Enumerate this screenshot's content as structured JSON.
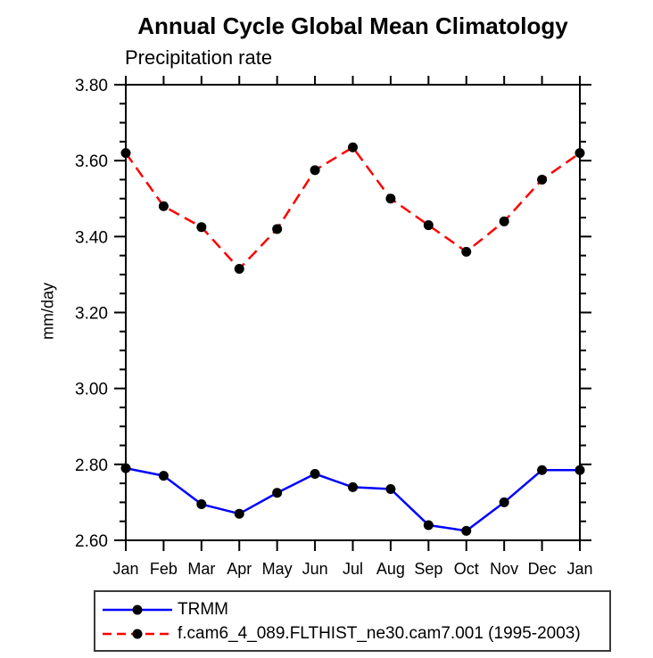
{
  "chart_data": {
    "type": "line",
    "title": "Annual Cycle Global Mean Climatology",
    "subtitle": "Precipitation rate",
    "ylabel": "mm/day",
    "categories": [
      "Jan",
      "Feb",
      "Mar",
      "Apr",
      "May",
      "Jun",
      "Jul",
      "Aug",
      "Sep",
      "Oct",
      "Nov",
      "Dec",
      "Jan"
    ],
    "ylim": [
      2.6,
      3.8
    ],
    "ytick_labels": [
      "2.60",
      "2.80",
      "3.00",
      "3.20",
      "3.40",
      "3.60",
      "3.80"
    ],
    "ytick_major_interval": 0.2,
    "ytick_minor_interval": 0.05,
    "grid": false,
    "frame": true,
    "legend_position": "bottom-left",
    "series": [
      {
        "name": "TRMM",
        "color": "#0000ff",
        "line_style": "solid",
        "marker": "filled-circle",
        "marker_color": "#000000",
        "values": [
          2.79,
          2.77,
          2.695,
          2.67,
          2.725,
          2.775,
          2.74,
          2.735,
          2.64,
          2.625,
          2.7,
          2.785,
          2.785
        ]
      },
      {
        "name": "f.cam6_4_089.FLTHIST_ne30.cam7.001 (1995-2003)",
        "color": "#ff0000",
        "line_style": "dashed",
        "marker": "filled-circle",
        "marker_color": "#000000",
        "values": [
          3.62,
          3.48,
          3.425,
          3.315,
          3.42,
          3.575,
          3.635,
          3.5,
          3.43,
          3.36,
          3.44,
          3.55,
          3.62
        ]
      }
    ]
  },
  "colors": {
    "axis": "#000000",
    "text": "#000000"
  }
}
